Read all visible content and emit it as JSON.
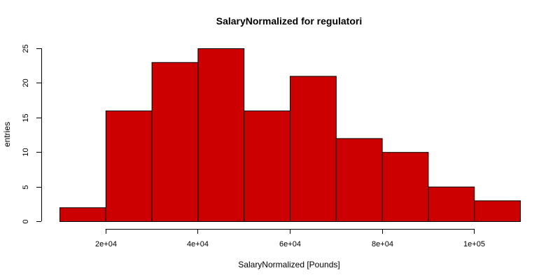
{
  "chart_data": {
    "type": "bar",
    "title": "SalaryNormalized for regulatori",
    "xlabel": "SalaryNormalized [Pounds]",
    "ylabel": "entries",
    "bin_edges": [
      10000,
      20000,
      30000,
      40000,
      50000,
      60000,
      70000,
      80000,
      90000,
      100000,
      110000
    ],
    "values": [
      2,
      16,
      23,
      25,
      16,
      21,
      12,
      10,
      5,
      3
    ],
    "xlim": [
      10000,
      110000
    ],
    "ylim": [
      0,
      25
    ],
    "x_ticks": [
      {
        "value": 20000,
        "label": "2e+04"
      },
      {
        "value": 40000,
        "label": "4e+04"
      },
      {
        "value": 60000,
        "label": "6e+04"
      },
      {
        "value": 80000,
        "label": "8e+04"
      },
      {
        "value": 100000,
        "label": "1e+05"
      }
    ],
    "y_ticks": [
      {
        "value": 0,
        "label": "0"
      },
      {
        "value": 5,
        "label": "5"
      },
      {
        "value": 10,
        "label": "10"
      },
      {
        "value": 15,
        "label": "15"
      },
      {
        "value": 20,
        "label": "20"
      },
      {
        "value": 25,
        "label": "25"
      }
    ],
    "bar_color": "#cc0000",
    "bar_border_color": "#000000",
    "grid": false,
    "legend": "none"
  }
}
